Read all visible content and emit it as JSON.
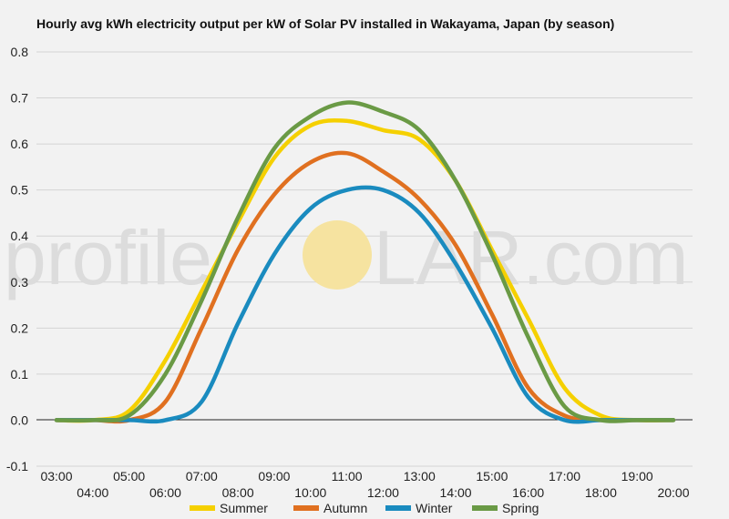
{
  "chart_data": {
    "type": "line",
    "title": "Hourly avg kWh electricity output per kW of Solar PV installed in Wakayama, Japan (by season)",
    "ylim": [
      -0.1,
      0.8
    ],
    "y_ticks": [
      "-0.1",
      "0.0",
      "0.1",
      "0.2",
      "0.3",
      "0.4",
      "0.5",
      "0.6",
      "0.7",
      "0.8"
    ],
    "y_tick_values": [
      -0.1,
      0,
      0.1,
      0.2,
      0.3,
      0.4,
      0.5,
      0.6,
      0.7,
      0.8
    ],
    "x": [
      "03:00",
      "04:00",
      "05:00",
      "06:00",
      "07:00",
      "08:00",
      "09:00",
      "10:00",
      "11:00",
      "12:00",
      "13:00",
      "14:00",
      "15:00",
      "16:00",
      "17:00",
      "18:00",
      "19:00",
      "20:00"
    ],
    "grid": true,
    "legend_position": "bottom",
    "series": [
      {
        "name": "Summer",
        "color": "#f5d000",
        "values": [
          0,
          0,
          0.02,
          0.13,
          0.28,
          0.43,
          0.57,
          0.64,
          0.65,
          0.63,
          0.61,
          0.52,
          0.37,
          0.22,
          0.07,
          0.01,
          0,
          0
        ]
      },
      {
        "name": "Autumn",
        "color": "#e07020",
        "values": [
          0,
          0,
          0,
          0.04,
          0.2,
          0.37,
          0.49,
          0.56,
          0.58,
          0.54,
          0.48,
          0.38,
          0.23,
          0.07,
          0.01,
          0,
          0,
          0
        ]
      },
      {
        "name": "Winter",
        "color": "#1a8bbf",
        "values": [
          0,
          0,
          0,
          0,
          0.04,
          0.21,
          0.36,
          0.46,
          0.5,
          0.5,
          0.45,
          0.34,
          0.2,
          0.05,
          0,
          0,
          0,
          0
        ]
      },
      {
        "name": "Spring",
        "color": "#6a9a45",
        "values": [
          0,
          0,
          0.01,
          0.1,
          0.26,
          0.44,
          0.59,
          0.66,
          0.69,
          0.67,
          0.63,
          0.52,
          0.36,
          0.18,
          0.03,
          0,
          0,
          0
        ]
      }
    ]
  },
  "watermark": {
    "left": "profile",
    "right": "LAR.com",
    "sun_color": "#f6e3a0"
  }
}
